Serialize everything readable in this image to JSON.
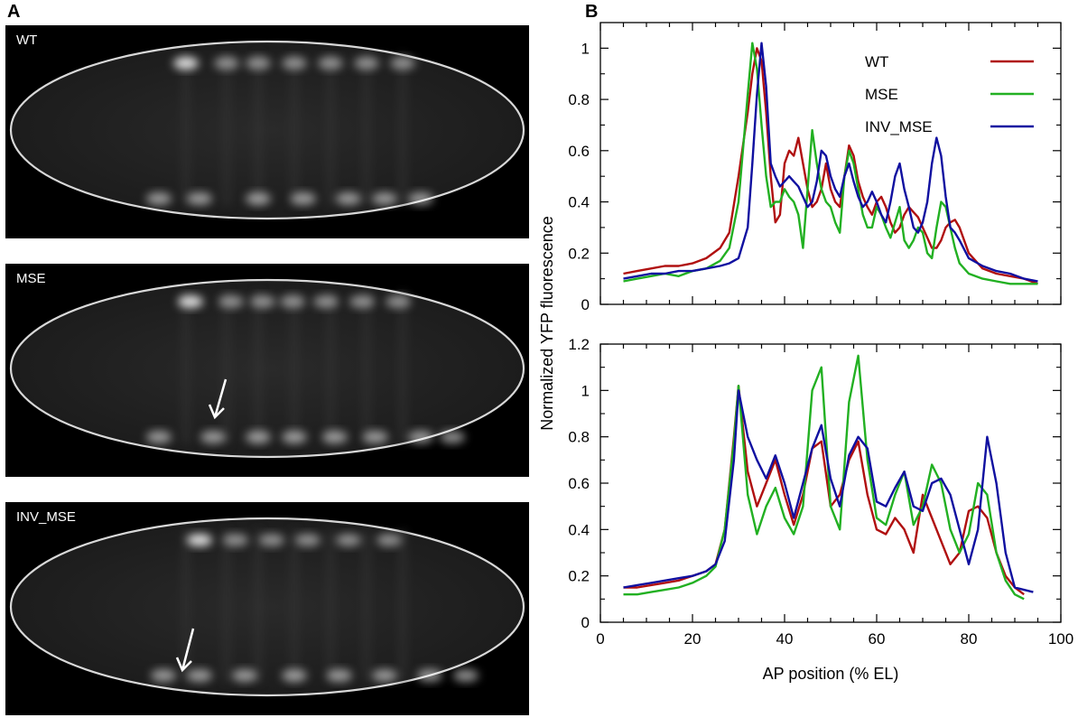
{
  "panel_a": {
    "letter": "A",
    "images": [
      {
        "label": "WT",
        "arrow": false
      },
      {
        "label": "MSE",
        "arrow": true
      },
      {
        "label": "INV_MSE",
        "arrow": true
      }
    ]
  },
  "panel_b": {
    "letter": "B"
  },
  "colors": {
    "WT": "#b01010",
    "MSE": "#22b022",
    "INV_MSE": "#1010a0"
  },
  "chart_data": [
    {
      "type": "line",
      "title": "",
      "xlabel": "AP position (% EL)",
      "ylabel": "Normalized YFP fluorescence",
      "xlim": [
        0,
        100
      ],
      "ylim": [
        0,
        1.1
      ],
      "xticks": [
        0,
        20,
        40,
        60,
        80,
        100
      ],
      "yticks": [
        0,
        0.2,
        0.4,
        0.6,
        0.8,
        1
      ],
      "ytick_labels": [
        "0",
        "0.2",
        "0.4",
        "0.6",
        "0.8",
        "1"
      ],
      "show_xtick_labels": false,
      "legend_position": "top-right",
      "series": [
        {
          "name": "WT",
          "x": [
            5,
            8,
            11,
            14,
            17,
            20,
            23,
            26,
            28,
            30,
            32,
            33,
            34,
            35,
            36,
            37,
            38,
            39,
            40,
            41,
            42,
            43,
            44,
            45,
            46,
            47,
            48,
            49,
            50,
            51,
            52,
            53,
            54,
            55,
            56,
            57,
            58,
            59,
            60,
            61,
            62,
            63,
            64,
            65,
            66,
            67,
            68,
            69,
            70,
            71,
            72,
            73,
            74,
            75,
            76,
            77,
            78,
            80,
            83,
            86,
            89,
            92,
            95
          ],
          "y": [
            0.12,
            0.13,
            0.14,
            0.15,
            0.15,
            0.16,
            0.18,
            0.22,
            0.28,
            0.5,
            0.75,
            0.9,
            1.0,
            0.95,
            0.75,
            0.5,
            0.32,
            0.35,
            0.55,
            0.6,
            0.58,
            0.65,
            0.55,
            0.45,
            0.38,
            0.4,
            0.45,
            0.55,
            0.45,
            0.4,
            0.38,
            0.5,
            0.62,
            0.58,
            0.48,
            0.42,
            0.38,
            0.35,
            0.4,
            0.42,
            0.38,
            0.32,
            0.28,
            0.3,
            0.35,
            0.38,
            0.36,
            0.34,
            0.3,
            0.26,
            0.22,
            0.22,
            0.25,
            0.3,
            0.32,
            0.33,
            0.3,
            0.2,
            0.14,
            0.12,
            0.11,
            0.1,
            0.08
          ]
        },
        {
          "name": "MSE",
          "x": [
            5,
            8,
            11,
            14,
            17,
            20,
            23,
            26,
            28,
            30,
            32,
            33,
            34,
            35,
            36,
            37,
            38,
            39,
            40,
            41,
            42,
            43,
            44,
            45,
            46,
            47,
            48,
            49,
            50,
            51,
            52,
            53,
            54,
            55,
            56,
            57,
            58,
            59,
            60,
            61,
            62,
            63,
            64,
            65,
            66,
            67,
            68,
            69,
            70,
            71,
            72,
            73,
            74,
            75,
            76,
            77,
            78,
            80,
            83,
            86,
            89,
            92,
            95
          ],
          "y": [
            0.09,
            0.1,
            0.11,
            0.12,
            0.11,
            0.13,
            0.14,
            0.17,
            0.22,
            0.4,
            0.82,
            1.02,
            0.92,
            0.7,
            0.5,
            0.38,
            0.4,
            0.4,
            0.45,
            0.42,
            0.4,
            0.35,
            0.22,
            0.45,
            0.68,
            0.55,
            0.45,
            0.4,
            0.38,
            0.32,
            0.28,
            0.5,
            0.6,
            0.55,
            0.45,
            0.35,
            0.3,
            0.3,
            0.38,
            0.35,
            0.3,
            0.26,
            0.32,
            0.38,
            0.25,
            0.22,
            0.25,
            0.3,
            0.28,
            0.2,
            0.18,
            0.3,
            0.4,
            0.38,
            0.3,
            0.22,
            0.16,
            0.12,
            0.1,
            0.09,
            0.08,
            0.08,
            0.08
          ]
        },
        {
          "name": "INV_MSE",
          "x": [
            5,
            8,
            11,
            14,
            17,
            20,
            23,
            26,
            28,
            30,
            32,
            33,
            34,
            35,
            36,
            37,
            38,
            39,
            40,
            41,
            42,
            43,
            44,
            45,
            46,
            47,
            48,
            49,
            50,
            51,
            52,
            53,
            54,
            55,
            56,
            57,
            58,
            59,
            60,
            61,
            62,
            63,
            64,
            65,
            66,
            67,
            68,
            69,
            70,
            71,
            72,
            73,
            74,
            75,
            76,
            77,
            78,
            80,
            83,
            86,
            89,
            92,
            95
          ],
          "y": [
            0.1,
            0.11,
            0.12,
            0.12,
            0.13,
            0.13,
            0.14,
            0.15,
            0.16,
            0.18,
            0.3,
            0.55,
            0.82,
            1.02,
            0.85,
            0.55,
            0.5,
            0.46,
            0.48,
            0.5,
            0.48,
            0.46,
            0.42,
            0.38,
            0.4,
            0.48,
            0.6,
            0.58,
            0.5,
            0.45,
            0.42,
            0.5,
            0.55,
            0.48,
            0.42,
            0.38,
            0.4,
            0.44,
            0.4,
            0.35,
            0.32,
            0.4,
            0.5,
            0.55,
            0.45,
            0.38,
            0.3,
            0.28,
            0.32,
            0.4,
            0.55,
            0.65,
            0.58,
            0.42,
            0.3,
            0.28,
            0.25,
            0.18,
            0.15,
            0.13,
            0.12,
            0.1,
            0.09
          ]
        }
      ]
    },
    {
      "type": "line",
      "title": "",
      "xlabel": "AP position (% EL)",
      "ylabel": "Normalized YFP fluorescence",
      "xlim": [
        0,
        100
      ],
      "ylim": [
        0,
        1.2
      ],
      "xticks": [
        0,
        20,
        40,
        60,
        80,
        100
      ],
      "yticks": [
        0,
        0.2,
        0.4,
        0.6,
        0.8,
        1,
        1.2
      ],
      "ytick_labels": [
        "0",
        "0.2",
        "0.4",
        "0.6",
        "0.8",
        "1",
        "1.2"
      ],
      "show_xtick_labels": true,
      "legend_position": "none",
      "series": [
        {
          "name": "WT",
          "x": [
            5,
            8,
            11,
            14,
            17,
            20,
            23,
            25,
            27,
            29,
            30,
            32,
            34,
            36,
            38,
            40,
            42,
            44,
            46,
            48,
            50,
            52,
            54,
            56,
            58,
            60,
            62,
            64,
            66,
            68,
            70,
            72,
            74,
            76,
            78,
            80,
            82,
            84,
            86,
            88,
            90,
            92
          ],
          "y": [
            0.15,
            0.15,
            0.16,
            0.17,
            0.18,
            0.2,
            0.22,
            0.25,
            0.4,
            0.8,
            1.02,
            0.65,
            0.5,
            0.6,
            0.7,
            0.55,
            0.42,
            0.55,
            0.75,
            0.78,
            0.5,
            0.55,
            0.7,
            0.78,
            0.55,
            0.4,
            0.38,
            0.45,
            0.4,
            0.3,
            0.55,
            0.45,
            0.35,
            0.25,
            0.3,
            0.48,
            0.5,
            0.45,
            0.3,
            0.2,
            0.15,
            0.12
          ]
        },
        {
          "name": "MSE",
          "x": [
            5,
            8,
            11,
            14,
            17,
            20,
            23,
            25,
            27,
            29,
            30,
            32,
            34,
            36,
            38,
            40,
            42,
            44,
            46,
            48,
            50,
            52,
            54,
            56,
            58,
            60,
            62,
            64,
            66,
            68,
            70,
            72,
            74,
            76,
            78,
            80,
            82,
            84,
            86,
            88,
            90,
            92
          ],
          "y": [
            0.12,
            0.12,
            0.13,
            0.14,
            0.15,
            0.17,
            0.2,
            0.24,
            0.4,
            0.78,
            1.02,
            0.55,
            0.38,
            0.5,
            0.58,
            0.45,
            0.38,
            0.5,
            1.0,
            1.1,
            0.5,
            0.4,
            0.95,
            1.15,
            0.7,
            0.45,
            0.42,
            0.55,
            0.65,
            0.42,
            0.5,
            0.68,
            0.6,
            0.4,
            0.3,
            0.38,
            0.6,
            0.55,
            0.3,
            0.18,
            0.12,
            0.1
          ]
        },
        {
          "name": "INV_MSE",
          "x": [
            5,
            8,
            11,
            14,
            17,
            20,
            23,
            25,
            27,
            29,
            30,
            32,
            34,
            36,
            38,
            40,
            42,
            44,
            46,
            48,
            50,
            52,
            54,
            56,
            58,
            60,
            62,
            64,
            66,
            68,
            70,
            72,
            74,
            76,
            78,
            80,
            82,
            84,
            86,
            88,
            90,
            92,
            94
          ],
          "y": [
            0.15,
            0.16,
            0.17,
            0.18,
            0.19,
            0.2,
            0.22,
            0.25,
            0.35,
            0.7,
            1.0,
            0.8,
            0.7,
            0.62,
            0.72,
            0.6,
            0.45,
            0.6,
            0.75,
            0.85,
            0.62,
            0.5,
            0.72,
            0.8,
            0.75,
            0.52,
            0.5,
            0.58,
            0.65,
            0.5,
            0.48,
            0.6,
            0.62,
            0.55,
            0.4,
            0.25,
            0.4,
            0.8,
            0.6,
            0.3,
            0.15,
            0.14,
            0.13
          ]
        }
      ]
    }
  ]
}
